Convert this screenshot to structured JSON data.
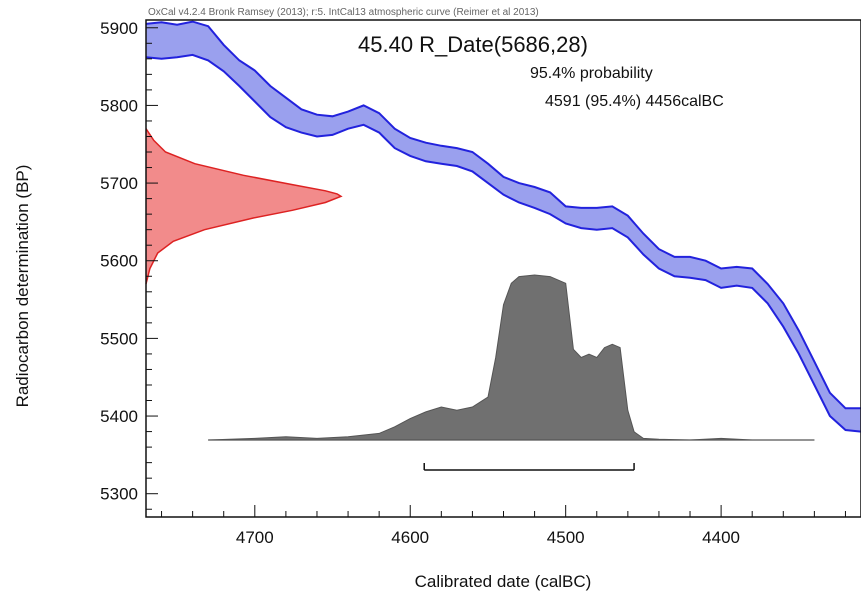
{
  "chart_data": {
    "type": "area",
    "header_text": "OxCal v4.2.4 Bronk Ramsey (2013); r:5. IntCal13 atmospheric curve (Reimer et al 2013)",
    "title": "45.40 R_Date(5686,28)",
    "probability_label": "95.4% probability",
    "range_label": "4591 (95.4%) 4456calBC",
    "xlabel": "Calibrated date (calBC)",
    "ylabel": "Radiocarbon determination (BP)",
    "xlim": [
      4770,
      4310
    ],
    "ylim": [
      5270,
      5910
    ],
    "x_ticks": [
      4700,
      4600,
      4500,
      4400
    ],
    "y_ticks": [
      5300,
      5400,
      5500,
      5600,
      5700,
      5800,
      5900
    ],
    "measurement": {
      "mean": 5686,
      "sd": 28
    },
    "calibration_curve": {
      "name": "IntCal13",
      "color": "#2222dd",
      "fill": "#9aa0ee",
      "x": [
        4770,
        4760,
        4750,
        4740,
        4730,
        4720,
        4710,
        4700,
        4690,
        4680,
        4670,
        4660,
        4650,
        4640,
        4630,
        4620,
        4610,
        4600,
        4590,
        4580,
        4570,
        4560,
        4550,
        4540,
        4530,
        4520,
        4510,
        4500,
        4490,
        4480,
        4470,
        4460,
        4450,
        4440,
        4430,
        4420,
        4410,
        4400,
        4390,
        4380,
        4370,
        4360,
        4350,
        4340,
        4330,
        4320,
        4310
      ],
      "upper": [
        5905,
        5907,
        5904,
        5908,
        5902,
        5878,
        5858,
        5845,
        5825,
        5810,
        5795,
        5788,
        5786,
        5792,
        5800,
        5790,
        5770,
        5758,
        5752,
        5748,
        5745,
        5740,
        5725,
        5708,
        5700,
        5695,
        5688,
        5670,
        5668,
        5668,
        5670,
        5658,
        5635,
        5615,
        5605,
        5605,
        5600,
        5590,
        5592,
        5590,
        5570,
        5545,
        5510,
        5470,
        5430,
        5410,
        5410
      ],
      "lower": [
        5862,
        5860,
        5862,
        5865,
        5858,
        5844,
        5825,
        5805,
        5785,
        5772,
        5765,
        5760,
        5762,
        5770,
        5775,
        5765,
        5745,
        5735,
        5728,
        5725,
        5722,
        5715,
        5700,
        5685,
        5675,
        5668,
        5660,
        5648,
        5642,
        5640,
        5642,
        5630,
        5608,
        5590,
        5580,
        5578,
        5575,
        5565,
        5568,
        5565,
        5545,
        5515,
        5480,
        5440,
        5400,
        5382,
        5380
      ]
    },
    "radiocarbon_distribution": {
      "color": "#dd2222",
      "fill": "#f28b8b",
      "y": [
        5570,
        5590,
        5610,
        5625,
        5640,
        5655,
        5665,
        5675,
        5683,
        5686,
        5690,
        5698,
        5710,
        5725,
        5740,
        5755,
        5770
      ],
      "width": [
        0,
        0.02,
        0.06,
        0.14,
        0.3,
        0.55,
        0.75,
        0.92,
        1.0,
        0.98,
        0.92,
        0.75,
        0.5,
        0.25,
        0.1,
        0.04,
        0
      ]
    },
    "calibrated_distribution": {
      "color": "#555555",
      "fill": "#707070",
      "baseline_range": [
        4730,
        4340
      ],
      "x": [
        4730,
        4700,
        4680,
        4660,
        4640,
        4620,
        4610,
        4600,
        4590,
        4580,
        4570,
        4560,
        4550,
        4545,
        4540,
        4535,
        4530,
        4520,
        4510,
        4500,
        4495,
        4490,
        4485,
        4480,
        4475,
        4470,
        4465,
        4460,
        4456,
        4450,
        4440,
        4420,
        4400,
        4380,
        4340
      ],
      "values": [
        0,
        0.01,
        0.02,
        0.01,
        0.02,
        0.04,
        0.08,
        0.13,
        0.17,
        0.2,
        0.18,
        0.2,
        0.26,
        0.5,
        0.82,
        0.95,
        0.99,
        1.0,
        0.99,
        0.95,
        0.55,
        0.5,
        0.52,
        0.5,
        0.56,
        0.58,
        0.56,
        0.18,
        0.05,
        0.01,
        0.005,
        0.0,
        0.01,
        0.0,
        0
      ]
    },
    "range_bar": {
      "from": 4591,
      "to": 4456
    }
  }
}
